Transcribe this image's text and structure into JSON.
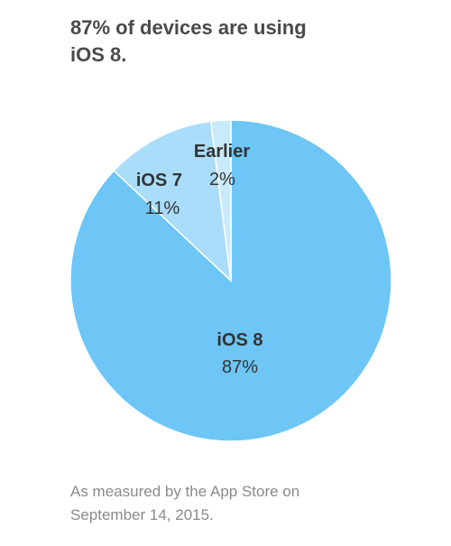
{
  "chart_data": {
    "type": "pie",
    "title": "87% of devices are using iOS 8.",
    "categories": [
      "iOS 8",
      "iOS 7",
      "Earlier"
    ],
    "values": [
      87,
      11,
      2
    ],
    "value_labels": [
      "87%",
      "11%",
      "2%"
    ],
    "colors": [
      "#6dc6f6",
      "#a9ddf9",
      "#c8eafb"
    ],
    "note": "As measured by the App Store on September 14, 2015."
  }
}
